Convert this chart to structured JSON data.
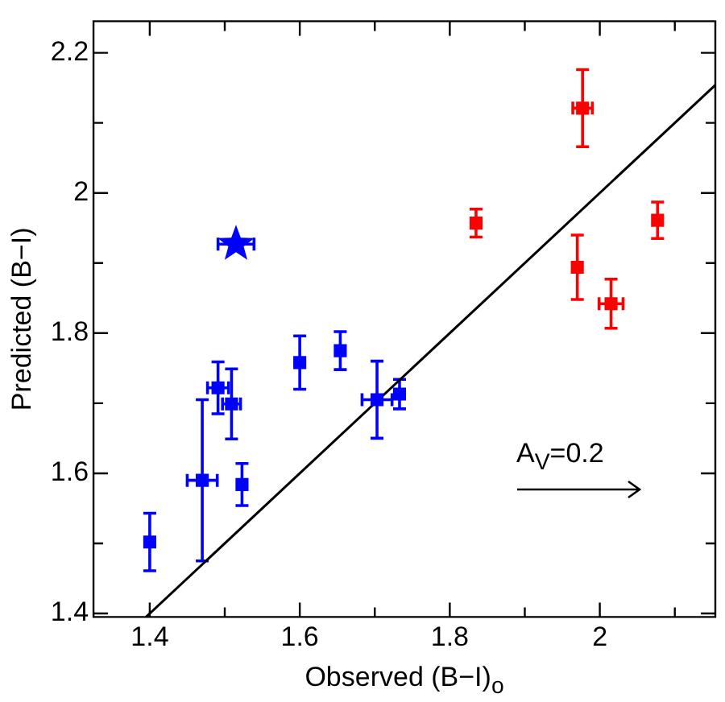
{
  "chart_data": {
    "type": "scatter",
    "xlabel": "Observed (B−I)$_{o}$",
    "ylabel": "Predicted (B−I)",
    "xlim": [
      1.325,
      2.154
    ],
    "ylim": [
      1.395,
      2.245
    ],
    "xticks": [
      1.4,
      {
        "value": 1.5,
        "label": null
      },
      1.6,
      {
        "value": 1.7,
        "label": null
      },
      1.8,
      {
        "value": 1.9,
        "label": null
      },
      2,
      {
        "value": 2.1,
        "label": null
      }
    ],
    "yticks": [
      1.4,
      {
        "value": 1.5,
        "label": null
      },
      1.6,
      {
        "value": 1.7,
        "label": null
      },
      1.8,
      {
        "value": 1.9,
        "label": null
      },
      2,
      {
        "value": 2.1,
        "label": null
      },
      2.2
    ],
    "grid": false,
    "legend": false,
    "marker": "square",
    "annotations": [
      "A$_{V}$=0.2"
    ],
    "series": [
      {
        "color": "#ff0000",
        "x": [
          1.835,
          1.977,
          2.077,
          1.97,
          2.015
        ],
        "values": [
          1.957,
          2.121,
          1.961,
          1.894,
          1.842
        ],
        "errors": [
          0.02,
          0.055,
          0.026,
          0.046,
          0.035
        ],
        "xerrors": [
          null,
          0.013,
          null,
          null,
          0.016
        ]
      },
      {
        "color": "#0000ff",
        "x": [
          1.4,
          1.47,
          1.491,
          1.509,
          1.523,
          1.6,
          1.654,
          1.703,
          1.733
        ],
        "values": [
          1.502,
          1.59,
          1.722,
          1.699,
          1.584,
          1.758,
          1.775,
          1.705,
          1.713
        ],
        "errors": [
          0.041,
          [
            1.475,
            1.705
          ],
          0.037,
          0.05,
          0.03,
          0.038,
          0.027,
          0.055,
          0.021
        ],
        "xerrors": [
          null,
          0.02,
          0.014,
          0.012,
          null,
          null,
          null,
          0.02,
          null
        ]
      },
      {
        "color": "#0000ff",
        "marker": "star",
        "x": [
          1.515
        ],
        "values": [
          1.927
        ],
        "xerrors": [
          0.024
        ]
      },
      {
        "type": "line",
        "color": "#000000",
        "marker": "none",
        "x": [
          1.395,
          2.154
        ],
        "values": [
          1.395,
          2.154
        ]
      }
    ]
  }
}
